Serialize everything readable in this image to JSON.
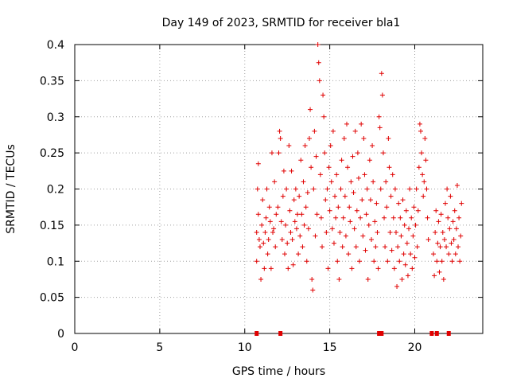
{
  "chart_data": {
    "type": "scatter",
    "title": "Day 149 of 2023, SRMTID for receiver bla1",
    "xlabel": "GPS time / hours",
    "ylabel": "SRMTID / TECUs",
    "xlim": [
      0,
      24
    ],
    "ylim": [
      0,
      0.4
    ],
    "xticks": [
      0,
      5,
      10,
      15,
      20
    ],
    "xtick_labels": [
      "0",
      "5",
      "10",
      "15",
      "20"
    ],
    "yticks": [
      0,
      0.05,
      0.1,
      0.15,
      0.2,
      0.25,
      0.3,
      0.35,
      0.4
    ],
    "ytick_labels": [
      "0",
      "0.05",
      "0.1",
      "0.15",
      "0.2",
      "0.25",
      "0.3",
      "0.35",
      "0.4"
    ],
    "grid": true,
    "marker": "+",
    "color": "#e00000",
    "series": [
      {
        "name": "SRMTID",
        "points": [
          [
            10.7,
            0.14
          ],
          [
            10.7,
            0.1
          ],
          [
            10.75,
            0.2
          ],
          [
            10.8,
            0.235
          ],
          [
            10.8,
            0.165
          ],
          [
            10.85,
            0.13
          ],
          [
            10.9,
            0.12
          ],
          [
            10.95,
            0.075
          ],
          [
            11.0,
            0.15
          ],
          [
            11.05,
            0.185
          ],
          [
            11.1,
            0.125
          ],
          [
            11.15,
            0.09
          ],
          [
            11.2,
            0.14
          ],
          [
            11.25,
            0.16
          ],
          [
            11.3,
            0.2
          ],
          [
            11.35,
            0.11
          ],
          [
            11.4,
            0.13
          ],
          [
            11.45,
            0.175
          ],
          [
            11.5,
            0.155
          ],
          [
            11.55,
            0.09
          ],
          [
            11.6,
            0.25
          ],
          [
            11.65,
            0.14
          ],
          [
            11.7,
            0.145
          ],
          [
            11.75,
            0.21
          ],
          [
            11.8,
            0.12
          ],
          [
            11.85,
            0.165
          ],
          [
            11.95,
            0.175
          ],
          [
            12.0,
            0.25
          ],
          [
            12.05,
            0.28
          ],
          [
            12.1,
            0.27
          ],
          [
            12.15,
            0.155
          ],
          [
            12.2,
            0.13
          ],
          [
            12.25,
            0.19
          ],
          [
            12.3,
            0.225
          ],
          [
            12.35,
            0.11
          ],
          [
            12.4,
            0.15
          ],
          [
            12.45,
            0.2
          ],
          [
            12.5,
            0.125
          ],
          [
            12.55,
            0.09
          ],
          [
            12.6,
            0.26
          ],
          [
            12.65,
            0.17
          ],
          [
            12.7,
            0.14
          ],
          [
            12.75,
            0.225
          ],
          [
            12.8,
            0.13
          ],
          [
            12.85,
            0.095
          ],
          [
            12.9,
            0.185
          ],
          [
            12.95,
            0.155
          ],
          [
            13.0,
            0.2
          ],
          [
            13.05,
            0.145
          ],
          [
            13.1,
            0.165
          ],
          [
            13.15,
            0.11
          ],
          [
            13.2,
            0.19
          ],
          [
            13.25,
            0.135
          ],
          [
            13.3,
            0.24
          ],
          [
            13.35,
            0.165
          ],
          [
            13.4,
            0.12
          ],
          [
            13.45,
            0.21
          ],
          [
            13.5,
            0.15
          ],
          [
            13.55,
            0.26
          ],
          [
            13.6,
            0.175
          ],
          [
            13.65,
            0.1
          ],
          [
            13.7,
            0.195
          ],
          [
            13.75,
            0.145
          ],
          [
            13.8,
            0.27
          ],
          [
            13.85,
            0.31
          ],
          [
            13.9,
            0.23
          ],
          [
            13.95,
            0.075
          ],
          [
            14.0,
            0.06
          ],
          [
            14.05,
            0.2
          ],
          [
            14.1,
            0.28
          ],
          [
            14.15,
            0.135
          ],
          [
            14.2,
            0.245
          ],
          [
            14.25,
            0.165
          ],
          [
            14.3,
            0.4
          ],
          [
            14.35,
            0.375
          ],
          [
            14.4,
            0.35
          ],
          [
            14.45,
            0.22
          ],
          [
            14.5,
            0.16
          ],
          [
            14.55,
            0.12
          ],
          [
            14.6,
            0.33
          ],
          [
            14.65,
            0.3
          ],
          [
            14.7,
            0.25
          ],
          [
            14.75,
            0.185
          ],
          [
            14.8,
            0.14
          ],
          [
            14.85,
            0.2
          ],
          [
            14.9,
            0.09
          ],
          [
            14.95,
            0.23
          ],
          [
            15.0,
            0.17
          ],
          [
            15.05,
            0.26
          ],
          [
            15.1,
            0.21
          ],
          [
            15.15,
            0.145
          ],
          [
            15.2,
            0.28
          ],
          [
            15.25,
            0.125
          ],
          [
            15.3,
            0.19
          ],
          [
            15.35,
            0.16
          ],
          [
            15.4,
            0.22
          ],
          [
            15.45,
            0.1
          ],
          [
            15.5,
            0.175
          ],
          [
            15.55,
            0.075
          ],
          [
            15.6,
            0.14
          ],
          [
            15.65,
            0.2
          ],
          [
            15.7,
            0.24
          ],
          [
            15.75,
            0.12
          ],
          [
            15.8,
            0.16
          ],
          [
            15.85,
            0.27
          ],
          [
            15.9,
            0.19
          ],
          [
            15.95,
            0.135
          ],
          [
            16.0,
            0.29
          ],
          [
            16.05,
            0.23
          ],
          [
            16.1,
            0.11
          ],
          [
            16.15,
            0.175
          ],
          [
            16.2,
            0.155
          ],
          [
            16.25,
            0.21
          ],
          [
            16.3,
            0.09
          ],
          [
            16.35,
            0.245
          ],
          [
            16.4,
            0.195
          ],
          [
            16.45,
            0.145
          ],
          [
            16.5,
            0.28
          ],
          [
            16.55,
            0.12
          ],
          [
            16.6,
            0.17
          ],
          [
            16.65,
            0.25
          ],
          [
            16.7,
            0.215
          ],
          [
            16.75,
            0.1
          ],
          [
            16.8,
            0.16
          ],
          [
            16.85,
            0.29
          ],
          [
            16.9,
            0.185
          ],
          [
            16.95,
            0.135
          ],
          [
            17.0,
            0.27
          ],
          [
            17.05,
            0.22
          ],
          [
            17.1,
            0.115
          ],
          [
            17.15,
            0.165
          ],
          [
            17.2,
            0.2
          ],
          [
            17.25,
            0.075
          ],
          [
            17.3,
            0.15
          ],
          [
            17.35,
            0.24
          ],
          [
            17.4,
            0.185
          ],
          [
            17.45,
            0.13
          ],
          [
            17.5,
            0.26
          ],
          [
            17.55,
            0.21
          ],
          [
            17.6,
            0.1
          ],
          [
            17.65,
            0.155
          ],
          [
            17.7,
            0.12
          ],
          [
            17.75,
            0.18
          ],
          [
            17.8,
            0.14
          ],
          [
            17.85,
            0.09
          ],
          [
            17.9,
            0.3
          ],
          [
            17.95,
            0.285
          ],
          [
            18.0,
            0.2
          ],
          [
            18.05,
            0.36
          ],
          [
            18.1,
            0.33
          ],
          [
            18.15,
            0.25
          ],
          [
            18.2,
            0.16
          ],
          [
            18.25,
            0.12
          ],
          [
            18.3,
            0.21
          ],
          [
            18.35,
            0.175
          ],
          [
            18.4,
            0.1
          ],
          [
            18.45,
            0.27
          ],
          [
            18.5,
            0.23
          ],
          [
            18.55,
            0.14
          ],
          [
            18.6,
            0.19
          ],
          [
            18.65,
            0.115
          ],
          [
            18.7,
            0.22
          ],
          [
            18.75,
            0.16
          ],
          [
            18.8,
            0.09
          ],
          [
            18.85,
            0.2
          ],
          [
            18.9,
            0.14
          ],
          [
            18.95,
            0.065
          ],
          [
            19.0,
            0.12
          ],
          [
            19.05,
            0.18
          ],
          [
            19.1,
            0.1
          ],
          [
            19.15,
            0.16
          ],
          [
            19.2,
            0.135
          ],
          [
            19.25,
            0.075
          ],
          [
            19.3,
            0.185
          ],
          [
            19.35,
            0.11
          ],
          [
            19.4,
            0.15
          ],
          [
            19.45,
            0.095
          ],
          [
            19.5,
            0.17
          ],
          [
            19.55,
            0.125
          ],
          [
            19.6,
            0.08
          ],
          [
            19.65,
            0.145
          ],
          [
            19.7,
            0.2
          ],
          [
            19.75,
            0.11
          ],
          [
            19.8,
            0.16
          ],
          [
            19.85,
            0.09
          ],
          [
            19.9,
            0.135
          ],
          [
            19.95,
            0.175
          ],
          [
            20.0,
            0.105
          ],
          [
            20.05,
            0.15
          ],
          [
            20.1,
            0.2
          ],
          [
            20.15,
            0.12
          ],
          [
            20.2,
            0.17
          ],
          [
            20.25,
            0.23
          ],
          [
            20.3,
            0.29
          ],
          [
            20.35,
            0.28
          ],
          [
            20.4,
            0.25
          ],
          [
            20.45,
            0.22
          ],
          [
            20.5,
            0.19
          ],
          [
            20.55,
            0.21
          ],
          [
            20.6,
            0.27
          ],
          [
            20.65,
            0.24
          ],
          [
            20.7,
            0.2
          ],
          [
            20.75,
            0.16
          ],
          [
            20.8,
            0.13
          ],
          [
            21.1,
            0.11
          ],
          [
            21.15,
            0.08
          ],
          [
            21.2,
            0.14
          ],
          [
            21.25,
            0.17
          ],
          [
            21.3,
            0.1
          ],
          [
            21.35,
            0.125
          ],
          [
            21.4,
            0.155
          ],
          [
            21.45,
            0.085
          ],
          [
            21.5,
            0.12
          ],
          [
            21.55,
            0.165
          ],
          [
            21.6,
            0.1
          ],
          [
            21.65,
            0.14
          ],
          [
            21.7,
            0.075
          ],
          [
            21.75,
            0.13
          ],
          [
            21.8,
            0.18
          ],
          [
            21.85,
            0.12
          ],
          [
            21.9,
            0.2
          ],
          [
            21.95,
            0.16
          ],
          [
            22.0,
            0.11
          ],
          [
            22.05,
            0.145
          ],
          [
            22.1,
            0.19
          ],
          [
            22.15,
            0.125
          ],
          [
            22.2,
            0.1
          ],
          [
            22.25,
            0.155
          ],
          [
            22.3,
            0.13
          ],
          [
            22.35,
            0.17
          ],
          [
            22.4,
            0.11
          ],
          [
            22.45,
            0.145
          ],
          [
            22.5,
            0.205
          ],
          [
            22.55,
            0.12
          ],
          [
            22.6,
            0.16
          ],
          [
            22.65,
            0.1
          ],
          [
            22.7,
            0.135
          ],
          [
            22.75,
            0.18
          ]
        ]
      }
    ],
    "gap_marks_x": [
      10.7,
      12.1,
      17.9,
      18.05,
      21.0,
      21.3,
      22.0
    ]
  }
}
